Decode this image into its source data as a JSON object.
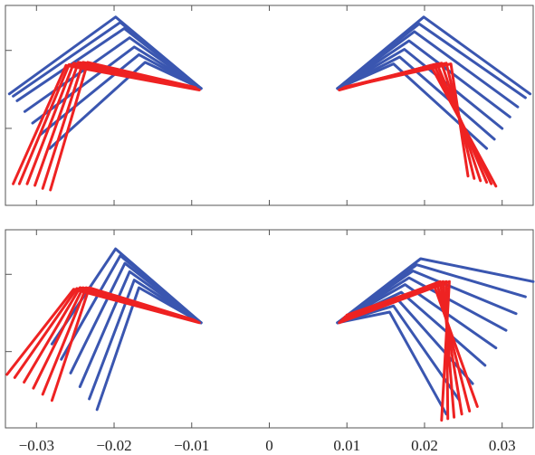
{
  "chart_data": [
    {
      "type": "line",
      "panel": "top",
      "xlim": [
        -0.034,
        0.034
      ],
      "grid": false,
      "series": [
        {
          "color": "#3a56b0",
          "segments": [
            [
              [
                -0.0335,
                1.45
              ],
              [
                -0.0198,
                2.45
              ],
              [
                -0.0088,
                1.52
              ]
            ],
            [
              [
                -0.033,
                1.42
              ],
              [
                -0.0192,
                2.38
              ],
              [
                -0.0088,
                1.52
              ]
            ],
            [
              [
                -0.0325,
                1.36
              ],
              [
                -0.0187,
                2.3
              ],
              [
                -0.0088,
                1.52
              ]
            ],
            [
              [
                -0.0315,
                1.22
              ],
              [
                -0.018,
                2.18
              ],
              [
                -0.0088,
                1.52
              ]
            ],
            [
              [
                -0.0305,
                1.07
              ],
              [
                -0.0174,
                2.06
              ],
              [
                -0.0088,
                1.52
              ]
            ],
            [
              [
                -0.0295,
                0.92
              ],
              [
                -0.0168,
                1.96
              ],
              [
                -0.0088,
                1.52
              ]
            ],
            [
              [
                -0.0283,
                0.74
              ],
              [
                -0.016,
                1.86
              ],
              [
                -0.0088,
                1.52
              ]
            ],
            [
              [
                0.0336,
                1.45
              ],
              [
                0.0199,
                2.45
              ],
              [
                0.0088,
                1.52
              ]
            ],
            [
              [
                0.033,
                1.4
              ],
              [
                0.0193,
                2.36
              ],
              [
                0.0088,
                1.52
              ]
            ],
            [
              [
                0.032,
                1.28
              ],
              [
                0.0187,
                2.26
              ],
              [
                0.0088,
                1.52
              ]
            ],
            [
              [
                0.031,
                1.15
              ],
              [
                0.018,
                2.14
              ],
              [
                0.0088,
                1.52
              ]
            ],
            [
              [
                0.03,
                1.0
              ],
              [
                0.0174,
                2.03
              ],
              [
                0.0088,
                1.52
              ]
            ],
            [
              [
                0.029,
                0.86
              ],
              [
                0.0168,
                1.93
              ],
              [
                0.0088,
                1.52
              ]
            ],
            [
              [
                0.028,
                0.74
              ],
              [
                0.016,
                1.84
              ],
              [
                0.0088,
                1.52
              ]
            ]
          ]
        },
        {
          "color": "#ee2222",
          "segments": [
            [
              [
                -0.033,
                0.28
              ],
              [
                -0.0262,
                1.82
              ],
              [
                -0.009,
                1.5
              ]
            ],
            [
              [
                -0.0322,
                0.28
              ],
              [
                -0.0258,
                1.83
              ],
              [
                -0.0092,
                1.51
              ]
            ],
            [
              [
                -0.0312,
                0.28
              ],
              [
                -0.0252,
                1.85
              ],
              [
                -0.0094,
                1.52
              ]
            ],
            [
              [
                -0.0302,
                0.26
              ],
              [
                -0.0246,
                1.86
              ],
              [
                -0.0095,
                1.53
              ]
            ],
            [
              [
                -0.0292,
                0.22
              ],
              [
                -0.024,
                1.86
              ],
              [
                -0.0096,
                1.53
              ]
            ],
            [
              [
                -0.0282,
                0.2
              ],
              [
                -0.0234,
                1.86
              ],
              [
                -0.0098,
                1.54
              ]
            ],
            [
              [
                0.0292,
                0.25
              ],
              [
                0.0208,
                1.82
              ],
              [
                0.009,
                1.5
              ]
            ],
            [
              [
                0.0286,
                0.28
              ],
              [
                0.0212,
                1.83
              ],
              [
                0.0092,
                1.51
              ]
            ],
            [
              [
                0.028,
                0.3
              ],
              [
                0.0216,
                1.84
              ],
              [
                0.0094,
                1.52
              ]
            ],
            [
              [
                0.0272,
                0.32
              ],
              [
                0.0222,
                1.85
              ],
              [
                0.0096,
                1.53
              ]
            ],
            [
              [
                0.0264,
                0.35
              ],
              [
                0.0228,
                1.85
              ],
              [
                0.0098,
                1.54
              ]
            ],
            [
              [
                0.0256,
                0.38
              ],
              [
                0.0234,
                1.84
              ],
              [
                0.01,
                1.54
              ]
            ]
          ]
        }
      ]
    },
    {
      "type": "line",
      "panel": "bottom",
      "xlim": [
        -0.034,
        0.034
      ],
      "grid": false,
      "xticks": [
        -0.03,
        -0.02,
        -0.01,
        0,
        0.01,
        0.02,
        0.03
      ],
      "xticklabels": [
        "−0.03",
        "−0.02",
        "−0.01",
        "0",
        "0.01",
        "0.02",
        "0.03"
      ],
      "series": [
        {
          "color": "#3a56b0",
          "segments": [
            [
              [
                -0.028,
                1.1
              ],
              [
                -0.0198,
                2.35
              ],
              [
                -0.0088,
                1.38
              ]
            ],
            [
              [
                -0.0268,
                0.9
              ],
              [
                -0.0192,
                2.26
              ],
              [
                -0.0088,
                1.38
              ]
            ],
            [
              [
                -0.0256,
                0.72
              ],
              [
                -0.0186,
                2.16
              ],
              [
                -0.0088,
                1.38
              ]
            ],
            [
              [
                -0.0244,
                0.54
              ],
              [
                -0.018,
                2.05
              ],
              [
                -0.0088,
                1.38
              ]
            ],
            [
              [
                -0.0232,
                0.38
              ],
              [
                -0.0174,
                1.94
              ],
              [
                -0.0088,
                1.38
              ]
            ],
            [
              [
                -0.0222,
                0.24
              ],
              [
                -0.0168,
                1.84
              ],
              [
                -0.0088,
                1.38
              ]
            ],
            [
              [
                0.034,
                1.92
              ],
              [
                0.0195,
                2.22
              ],
              [
                0.0088,
                1.38
              ]
            ],
            [
              [
                0.033,
                1.72
              ],
              [
                0.019,
                2.14
              ],
              [
                0.0088,
                1.38
              ]
            ],
            [
              [
                0.0318,
                1.5
              ],
              [
                0.0185,
                2.06
              ],
              [
                0.0088,
                1.38
              ]
            ],
            [
              [
                0.0305,
                1.28
              ],
              [
                0.018,
                1.97
              ],
              [
                0.0088,
                1.38
              ]
            ],
            [
              [
                0.0292,
                1.05
              ],
              [
                0.0175,
                1.88
              ],
              [
                0.0088,
                1.38
              ]
            ],
            [
              [
                0.0278,
                0.82
              ],
              [
                0.017,
                1.78
              ],
              [
                0.0088,
                1.38
              ]
            ],
            [
              [
                0.0262,
                0.58
              ],
              [
                0.0165,
                1.69
              ],
              [
                0.0088,
                1.38
              ]
            ],
            [
              [
                0.0245,
                0.36
              ],
              [
                0.016,
                1.6
              ],
              [
                0.0088,
                1.38
              ]
            ],
            [
              [
                0.0228,
                0.18
              ],
              [
                0.0155,
                1.52
              ],
              [
                0.0088,
                1.38
              ]
            ]
          ]
        },
        {
          "color": "#ee2222",
          "segments": [
            [
              [
                -0.0338,
                0.7
              ],
              [
                -0.0252,
                1.82
              ],
              [
                -0.009,
                1.38
              ]
            ],
            [
              [
                -0.0328,
                0.66
              ],
              [
                -0.0248,
                1.83
              ],
              [
                -0.0092,
                1.39
              ]
            ],
            [
              [
                -0.0316,
                0.6
              ],
              [
                -0.0244,
                1.84
              ],
              [
                -0.0094,
                1.4
              ]
            ],
            [
              [
                -0.0304,
                0.52
              ],
              [
                -0.024,
                1.84
              ],
              [
                -0.0095,
                1.4
              ]
            ],
            [
              [
                -0.0292,
                0.44
              ],
              [
                -0.0236,
                1.84
              ],
              [
                -0.0096,
                1.41
              ]
            ],
            [
              [
                -0.028,
                0.36
              ],
              [
                -0.0232,
                1.84
              ],
              [
                -0.0098,
                1.42
              ]
            ],
            [
              [
                0.0222,
                0.1
              ],
              [
                0.0232,
                1.92
              ],
              [
                0.009,
                1.38
              ]
            ],
            [
              [
                0.023,
                0.12
              ],
              [
                0.0228,
                1.92
              ],
              [
                0.0092,
                1.4
              ]
            ],
            [
              [
                0.0238,
                0.14
              ],
              [
                0.0224,
                1.92
              ],
              [
                0.0094,
                1.42
              ]
            ],
            [
              [
                0.0248,
                0.18
              ],
              [
                0.022,
                1.92
              ],
              [
                0.0096,
                1.44
              ]
            ],
            [
              [
                0.0258,
                0.22
              ],
              [
                0.0216,
                1.9
              ],
              [
                0.0098,
                1.46
              ]
            ],
            [
              [
                0.0268,
                0.28
              ],
              [
                0.0212,
                1.88
              ],
              [
                0.01,
                1.48
              ]
            ]
          ]
        }
      ]
    }
  ]
}
